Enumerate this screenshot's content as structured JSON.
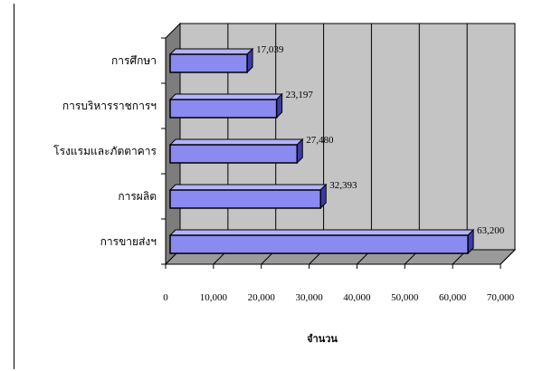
{
  "chart_data": {
    "type": "bar",
    "orientation": "horizontal",
    "three_d": true,
    "categories": [
      "การศึกษา",
      "การบริหารราชการฯ",
      "โรงแรมและภัตตาคาร",
      "การผลิต",
      "การขายส่งฯ"
    ],
    "values": [
      17039,
      23197,
      27480,
      32393,
      63200
    ],
    "value_labels": [
      "17,039",
      "23,197",
      "27,480",
      "32,393",
      "63,200"
    ],
    "title": "",
    "xlabel": "จำนวน",
    "ylabel": "",
    "xlim": [
      0,
      70000
    ],
    "x_ticks": [
      0,
      10000,
      20000,
      30000,
      40000,
      50000,
      60000,
      70000
    ],
    "x_tick_labels": [
      "0",
      "10,000",
      "20,000",
      "30,000",
      "40,000",
      "50,000",
      "60,000",
      "70,000"
    ],
    "grid": true,
    "legend": "none",
    "colors": {
      "bar": "#8a8af0",
      "bar_top": "#b3b3ff",
      "bar_side": "#3c3ca8",
      "wall": "#c4c4c4",
      "floor": "#9a9a9a",
      "side_wall": "#7d7d7d"
    }
  }
}
